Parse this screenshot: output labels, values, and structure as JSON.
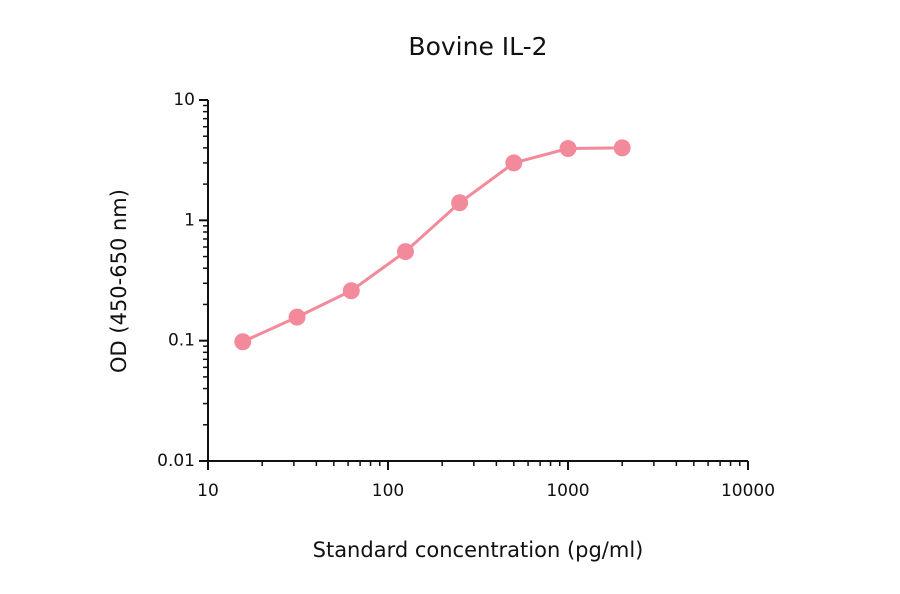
{
  "chart_data": {
    "type": "line",
    "title": "Bovine IL-2",
    "x_label": "Standard concentration (pg/ml)",
    "y_label": "OD (450-650 nm)",
    "x": [
      15.6,
      31.25,
      62.5,
      125,
      250,
      500,
      1000,
      2000
    ],
    "series": [
      {
        "name": "Bovine IL-2",
        "color": "#f28a9b",
        "values": [
          0.098,
          0.157,
          0.26,
          0.55,
          1.4,
          3.0,
          3.95,
          4.0
        ]
      }
    ],
    "xlim": [
      10,
      10000
    ],
    "xticks": [
      10,
      100,
      1000,
      10000
    ],
    "ylim": [
      0.01,
      10
    ],
    "yticks": [
      0.01,
      0.1,
      1,
      10
    ],
    "xscale": "log",
    "yscale": "log",
    "markers": true
  }
}
